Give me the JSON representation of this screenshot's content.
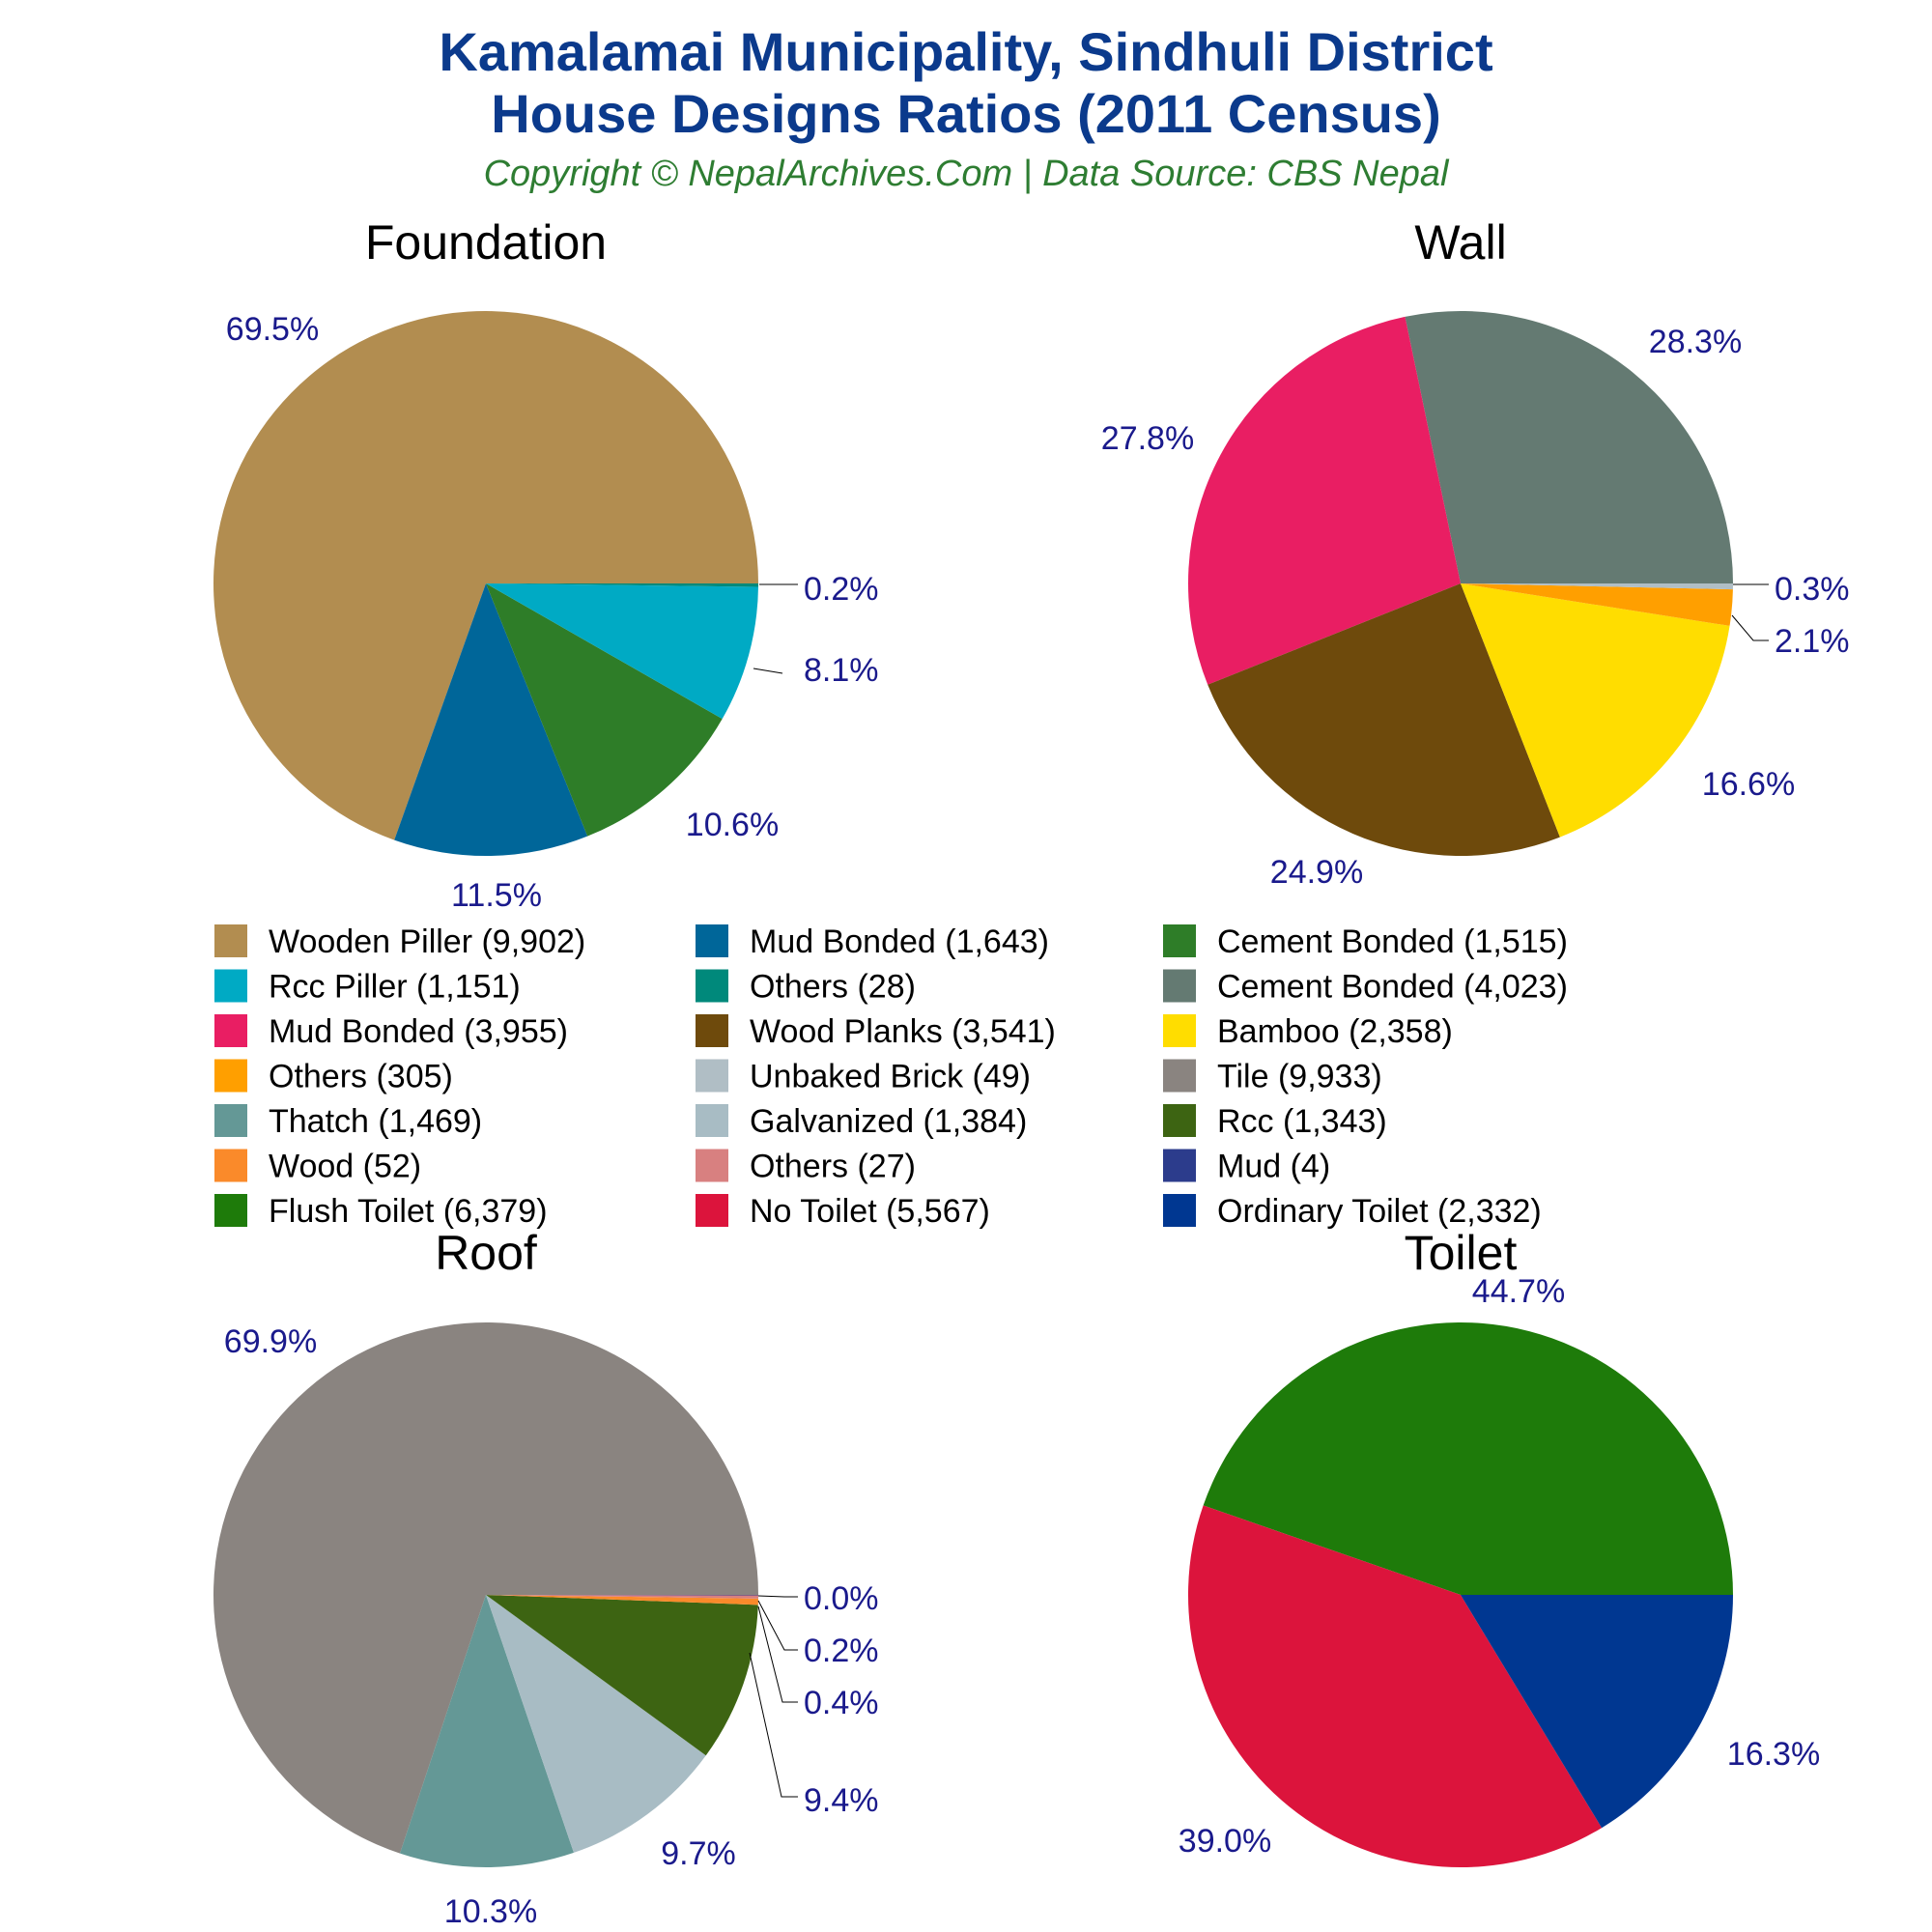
{
  "header": {
    "title_line1": "Kamalamai Municipality, Sindhuli District",
    "title_line2": "House Designs Ratios (2011 Census)",
    "subtitle": "Copyright © NepalArchives.Com | Data Source: CBS Nepal"
  },
  "chart_data": [
    {
      "type": "pie",
      "title": "Foundation",
      "series": [
        {
          "name": "Wooden Piller",
          "value": 9902,
          "pct_label": "69.5%",
          "color": "#b28d50"
        },
        {
          "name": "Mud Bonded",
          "value": 1643,
          "pct_label": "11.5%",
          "color": "#006699"
        },
        {
          "name": "Cement Bonded",
          "value": 1515,
          "pct_label": "10.6%",
          "color": "#2e7d28"
        },
        {
          "name": "Rcc Piller",
          "value": 1151,
          "pct_label": "8.1%",
          "color": "#00aac4"
        },
        {
          "name": "Others",
          "value": 28,
          "pct_label": "0.2%",
          "color": "#00897b"
        }
      ]
    },
    {
      "type": "pie",
      "title": "Wall",
      "series": [
        {
          "name": "Cement Bonded",
          "value": 4023,
          "pct_label": "28.3%",
          "color": "#647a72"
        },
        {
          "name": "Mud Bonded",
          "value": 3955,
          "pct_label": "27.8%",
          "color": "#e91e63"
        },
        {
          "name": "Wood Planks",
          "value": 3541,
          "pct_label": "24.9%",
          "color": "#6e4a0c"
        },
        {
          "name": "Bamboo",
          "value": 2358,
          "pct_label": "16.6%",
          "color": "#ffdd00"
        },
        {
          "name": "Others",
          "value": 305,
          "pct_label": "2.1%",
          "color": "#ff9f00"
        },
        {
          "name": "Unbaked Brick",
          "value": 49,
          "pct_label": "0.3%",
          "color": "#b0bec5"
        }
      ]
    },
    {
      "type": "pie",
      "title": "Roof",
      "series": [
        {
          "name": "Tile",
          "value": 9933,
          "pct_label": "69.9%",
          "color": "#8a8480"
        },
        {
          "name": "Thatch",
          "value": 1469,
          "pct_label": "10.3%",
          "color": "#649896"
        },
        {
          "name": "Galvanized",
          "value": 1384,
          "pct_label": "9.7%",
          "color": "#a8bcc4"
        },
        {
          "name": "Rcc",
          "value": 1343,
          "pct_label": "9.4%",
          "color": "#3d6412"
        },
        {
          "name": "Wood",
          "value": 52,
          "pct_label": "0.4%",
          "color": "#fa8a2a"
        },
        {
          "name": "Others",
          "value": 27,
          "pct_label": "0.2%",
          "color": "#d88080"
        },
        {
          "name": "Mud",
          "value": 4,
          "pct_label": "0.0%",
          "color": "#2c3c8c"
        }
      ]
    },
    {
      "type": "pie",
      "title": "Toilet",
      "series": [
        {
          "name": "Flush Toilet",
          "value": 6379,
          "pct_label": "44.7%",
          "color": "#1e7b0a"
        },
        {
          "name": "No Toilet",
          "value": 5567,
          "pct_label": "39.0%",
          "color": "#dc143c"
        },
        {
          "name": "Ordinary Toilet",
          "value": 2332,
          "pct_label": "16.3%",
          "color": "#003791"
        }
      ]
    }
  ],
  "legend": [
    {
      "label": "Wooden Piller (9,902)",
      "color": "#b28d50"
    },
    {
      "label": "Mud Bonded (1,643)",
      "color": "#006699"
    },
    {
      "label": "Cement Bonded (1,515)",
      "color": "#2e7d28"
    },
    {
      "label": "Rcc Piller (1,151)",
      "color": "#00aac4"
    },
    {
      "label": "Others (28)",
      "color": "#00897b"
    },
    {
      "label": "Cement Bonded (4,023)",
      "color": "#647a72"
    },
    {
      "label": "Mud Bonded (3,955)",
      "color": "#e91e63"
    },
    {
      "label": "Wood Planks (3,541)",
      "color": "#6e4a0c"
    },
    {
      "label": "Bamboo (2,358)",
      "color": "#ffdd00"
    },
    {
      "label": "Others (305)",
      "color": "#ff9f00"
    },
    {
      "label": "Unbaked Brick (49)",
      "color": "#b0bec5"
    },
    {
      "label": "Tile (9,933)",
      "color": "#8a8480"
    },
    {
      "label": "Thatch (1,469)",
      "color": "#649896"
    },
    {
      "label": "Galvanized (1,384)",
      "color": "#a8bcc4"
    },
    {
      "label": "Rcc (1,343)",
      "color": "#3d6412"
    },
    {
      "label": "Wood (52)",
      "color": "#fa8a2a"
    },
    {
      "label": "Others (27)",
      "color": "#d88080"
    },
    {
      "label": "Mud (4)",
      "color": "#2c3c8c"
    },
    {
      "label": "Flush Toilet (6,379)",
      "color": "#1e7b0a"
    },
    {
      "label": "No Toilet (5,567)",
      "color": "#dc143c"
    },
    {
      "label": "Ordinary Toilet (2,332)",
      "color": "#003791"
    }
  ]
}
